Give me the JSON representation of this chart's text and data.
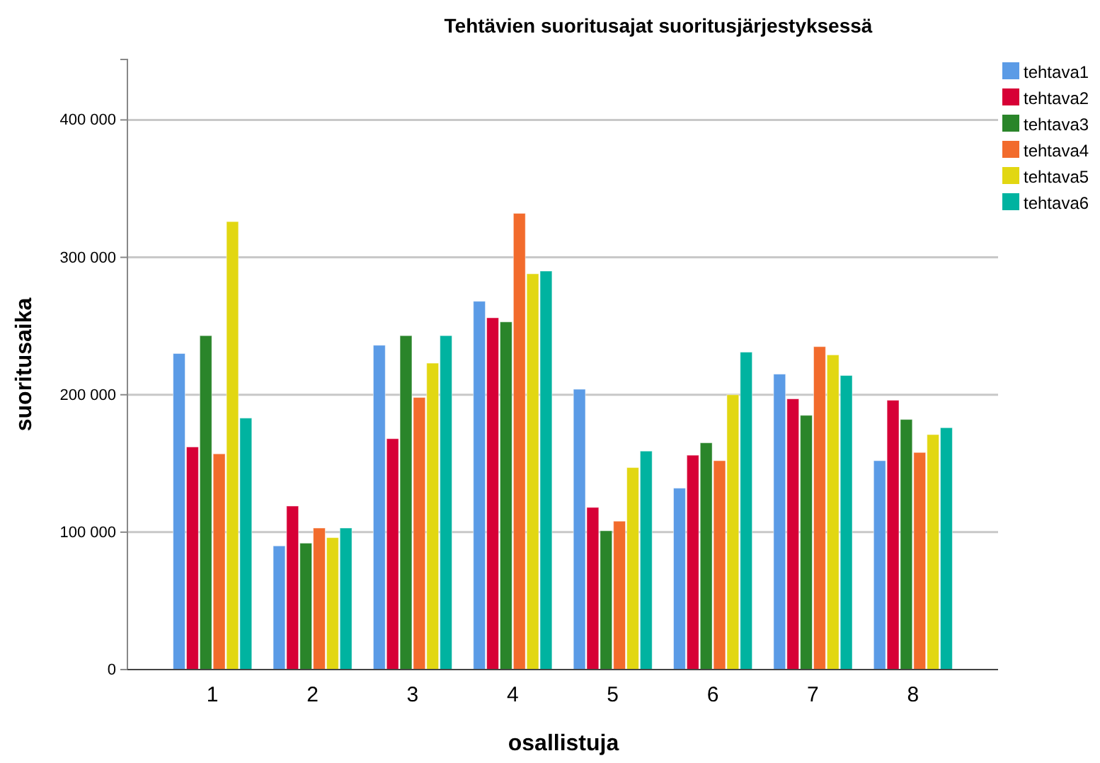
{
  "chart_data": {
    "type": "bar",
    "title": "Tehtävien suoritusajat suoritusjärjestyksessä",
    "xlabel": "osallistuja",
    "ylabel": "suoritusaika",
    "categories": [
      "1",
      "2",
      "3",
      "4",
      "5",
      "6",
      "7",
      "8"
    ],
    "series": [
      {
        "name": "tehtava1",
        "color": "#5b9be6",
        "values": [
          230000,
          90000,
          236000,
          268000,
          204000,
          132000,
          215000,
          152000
        ]
      },
      {
        "name": "tehtava2",
        "color": "#d70036",
        "values": [
          162000,
          119000,
          168000,
          256000,
          118000,
          156000,
          197000,
          196000
        ]
      },
      {
        "name": "tehtava3",
        "color": "#2a852a",
        "values": [
          243000,
          92000,
          243000,
          253000,
          101000,
          165000,
          185000,
          182000
        ]
      },
      {
        "name": "tehtava4",
        "color": "#f26b2c",
        "values": [
          157000,
          103000,
          198000,
          332000,
          108000,
          152000,
          235000,
          158000
        ]
      },
      {
        "name": "tehtava5",
        "color": "#e2d712",
        "values": [
          326000,
          96000,
          223000,
          288000,
          147000,
          200000,
          229000,
          171000
        ]
      },
      {
        "name": "tehtava6",
        "color": "#00b3a0",
        "values": [
          183000,
          103000,
          243000,
          290000,
          159000,
          231000,
          214000,
          176000
        ]
      }
    ],
    "ylim": [
      0,
      444000
    ],
    "yticks": [
      0,
      {
        "value": 100000,
        "label": "100 000"
      },
      {
        "value": 200000,
        "label": "200 000"
      },
      {
        "value": 300000,
        "label": "300 000"
      },
      {
        "value": 400000,
        "label": "400 000"
      }
    ],
    "grid": "y",
    "legend": "top right"
  }
}
